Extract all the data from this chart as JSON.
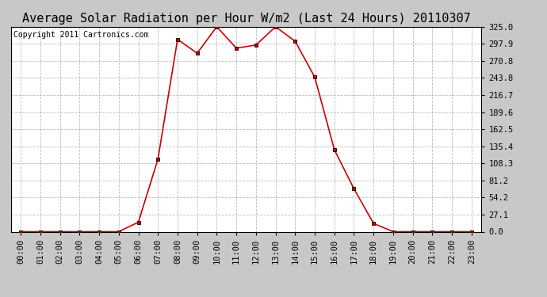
{
  "title": "Average Solar Radiation per Hour W/m2 (Last 24 Hours) 20110307",
  "copyright_text": "Copyright 2011 Cartronics.com",
  "hours": [
    "00:00",
    "01:00",
    "02:00",
    "03:00",
    "04:00",
    "05:00",
    "06:00",
    "07:00",
    "08:00",
    "09:00",
    "10:00",
    "11:00",
    "12:00",
    "13:00",
    "14:00",
    "15:00",
    "16:00",
    "17:00",
    "18:00",
    "19:00",
    "20:00",
    "21:00",
    "22:00",
    "23:00"
  ],
  "values": [
    0,
    0,
    0,
    0,
    0,
    0,
    15,
    115,
    305,
    283,
    325,
    291,
    296,
    325,
    302,
    245,
    130,
    68,
    13,
    0,
    0,
    0,
    0,
    0
  ],
  "line_color": "#cc0000",
  "marker": "s",
  "marker_size": 3,
  "marker_color": "#000000",
  "bg_color": "#ffffff",
  "grid_color": "#bbbbbb",
  "ylim": [
    0,
    325
  ],
  "ytick_values": [
    0.0,
    27.1,
    54.2,
    81.2,
    108.3,
    135.4,
    162.5,
    189.6,
    216.7,
    243.8,
    270.8,
    297.9,
    325.0
  ],
  "title_fontsize": 11,
  "copyright_fontsize": 7,
  "tick_fontsize": 7.5,
  "title_color": "#000000",
  "outer_bg": "#c8c8c8"
}
